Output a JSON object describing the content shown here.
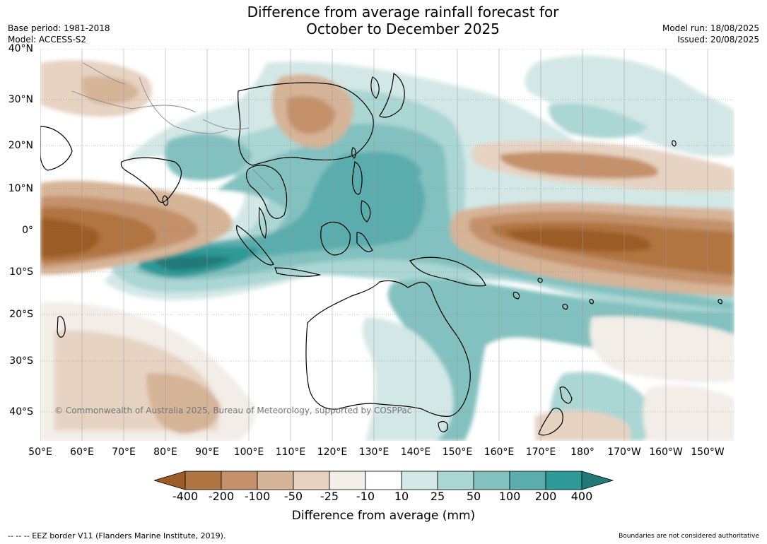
{
  "title": {
    "line1": "Difference from average rainfall forecast for",
    "line2": "October to December 2025"
  },
  "meta_left": {
    "base_period": "Base period: 1981-2018",
    "model": "Model: ACCESS-S2"
  },
  "meta_right": {
    "model_run": "Model run: 18/08/2025",
    "issued": "Issued: 20/08/2025"
  },
  "map": {
    "lat_labels": [
      "40°N",
      "30°N",
      "20°N",
      "10°N",
      "0°",
      "10°S",
      "20°S",
      "30°S",
      "40°S"
    ],
    "lon_labels": [
      "50°E",
      "60°E",
      "70°E",
      "80°E",
      "90°E",
      "100°E",
      "110°E",
      "120°E",
      "130°E",
      "140°E",
      "150°E",
      "160°E",
      "170°E",
      "180°",
      "170°W",
      "160°W",
      "150°W"
    ],
    "copyright": "© Commonwealth of Australia 2025, Bureau of Meteorology, supported by COSPPac"
  },
  "colorbar": {
    "tick_labels": [
      "-400",
      "-200",
      "-100",
      "-50",
      "-25",
      "-10",
      "10",
      "25",
      "50",
      "100",
      "200",
      "400"
    ],
    "colors": [
      "#9c5b27",
      "#b07440",
      "#c4916a",
      "#d6b497",
      "#e6d3c2",
      "#f2ede7",
      "#ffffff",
      "#d3e8e6",
      "#aad6d4",
      "#82c1bf",
      "#5aadac",
      "#2f9997",
      "#217a78"
    ],
    "title": "Difference from average (mm)"
  },
  "footer": {
    "eez_note": "--  --  -- EEZ border V11 (Flanders Marine Institute, 2019).",
    "boundaries_note": "Boundaries are not considered authoritative"
  }
}
